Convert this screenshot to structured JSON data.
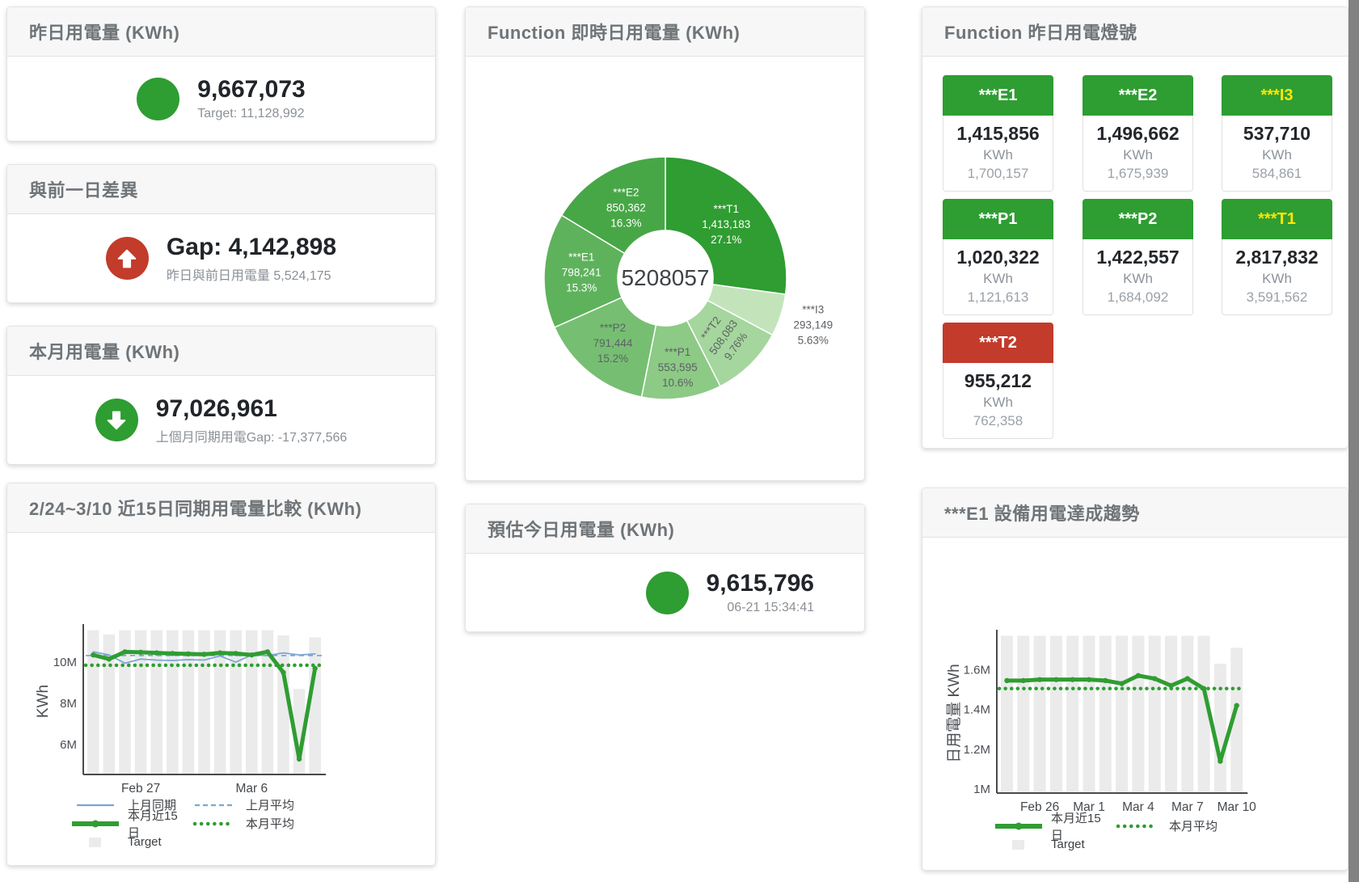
{
  "colors": {
    "green": "#2e9d32",
    "red": "#c23b2b",
    "blue": "#7aa7d4",
    "bar_grey": "#ebebeb",
    "yellow": "#ffe600"
  },
  "cards": {
    "yesterday": {
      "title": "昨日用電量 (KWh)",
      "value": "9,667,073",
      "subtitle": "Target: 11,128,992"
    },
    "day_gap": {
      "title": "與前一日差異",
      "value": "Gap: 4,142,898",
      "subtitle": "昨日與前日用電量 5,524,175"
    },
    "month": {
      "title": "本月用電量 (KWh)",
      "value": "97,026,961",
      "subtitle": "上個月同期用電Gap: -17,377,566"
    },
    "today_estimate": {
      "title": "預估今日用電量 (KWh)",
      "value": "9,615,796",
      "subtitle": "06-21 15:34:41"
    }
  },
  "lights": {
    "title": "Function 昨日用電燈號",
    "tiles": [
      {
        "label": "***E1",
        "value": "1,415,856",
        "unit": "KWh",
        "target": "1,700,157",
        "state": "green",
        "label_color": "#ffffff"
      },
      {
        "label": "***E2",
        "value": "1,496,662",
        "unit": "KWh",
        "target": "1,675,939",
        "state": "green",
        "label_color": "#ffffff"
      },
      {
        "label": "***I3",
        "value": "537,710",
        "unit": "KWh",
        "target": "584,861",
        "state": "green",
        "label_color": "#ffe600"
      },
      {
        "label": "***P1",
        "value": "1,020,322",
        "unit": "KWh",
        "target": "1,121,613",
        "state": "green",
        "label_color": "#ffffff"
      },
      {
        "label": "***P2",
        "value": "1,422,557",
        "unit": "KWh",
        "target": "1,684,092",
        "state": "green",
        "label_color": "#ffffff"
      },
      {
        "label": "***T1",
        "value": "2,817,832",
        "unit": "KWh",
        "target": "3,591,562",
        "state": "green",
        "label_color": "#ffe600"
      },
      {
        "label": "***T2",
        "value": "955,212",
        "unit": "KWh",
        "target": "762,358",
        "state": "red",
        "label_color": "#ffffff"
      }
    ]
  },
  "chart_data": [
    {
      "type": "pie",
      "title": "Function 即時日用電量 (KWh)",
      "center_total": "5208057",
      "slices": [
        {
          "name": "***T1",
          "value": 1413183,
          "pct": "27.1%",
          "color": "#2f9d32",
          "text": "#ffffff"
        },
        {
          "name": "***I3",
          "value": 293149,
          "pct": "5.63%",
          "color": "#c3e4bb",
          "text": "#5d6166"
        },
        {
          "name": "***T2",
          "value": 508083,
          "pct": "9.76%",
          "color": "#a5d69d",
          "text": "#5d6166"
        },
        {
          "name": "***P1",
          "value": 553595,
          "pct": "10.6%",
          "color": "#8cca85",
          "text": "#5d6166"
        },
        {
          "name": "***P2",
          "value": 791444,
          "pct": "15.2%",
          "color": "#76bf72",
          "text": "#5d6166"
        },
        {
          "name": "***E1",
          "value": 798241,
          "pct": "15.3%",
          "color": "#5fb25c",
          "text": "#ffffff"
        },
        {
          "name": "***E2",
          "value": 850362,
          "pct": "16.3%",
          "color": "#47a746",
          "text": "#ffffff"
        }
      ]
    },
    {
      "type": "line+bar",
      "title": "2/24~3/10 近15日同期用電量比較 (KWh)",
      "ylabel": "KWh",
      "ylim": [
        4.55,
        11.65
      ],
      "yticks": [
        {
          "label": "6M",
          "value": 6
        },
        {
          "label": "8M",
          "value": 8
        },
        {
          "label": "10M",
          "value": 10
        }
      ],
      "xticks": [
        {
          "label": "Feb 27",
          "index": 3
        },
        {
          "label": "Mar 6",
          "index": 10
        }
      ],
      "series": [
        {
          "name": "Target",
          "type": "bar",
          "color": "#ebebeb",
          "values": [
            11.55,
            11.35,
            11.55,
            11.55,
            11.55,
            11.55,
            11.55,
            11.55,
            11.55,
            11.55,
            11.55,
            11.55,
            11.3,
            8.7,
            11.2
          ]
        },
        {
          "name": "上月平均",
          "type": "dashed",
          "color": "#7aa7d4",
          "values": 10.32
        },
        {
          "name": "本月平均",
          "type": "dotted",
          "color": "#2f9d32",
          "values": 9.85
        },
        {
          "name": "上月同期",
          "type": "line",
          "color": "#7aa7d4",
          "values": [
            10.5,
            10.35,
            9.95,
            10.15,
            10.1,
            10.08,
            10.12,
            10.1,
            10.3,
            10.0,
            10.35,
            10.32,
            10.45,
            10.35,
            10.4
          ]
        },
        {
          "name": "本月近15日",
          "type": "thick",
          "color": "#2f9d32",
          "values": [
            10.35,
            10.15,
            10.5,
            10.48,
            10.45,
            10.42,
            10.4,
            10.38,
            10.45,
            10.42,
            10.35,
            10.5,
            9.5,
            5.3,
            9.7
          ]
        }
      ],
      "legend_rows": [
        [
          "上月同期",
          "上月平均"
        ],
        [
          "本月近15日",
          "本月平均"
        ],
        [
          "Target"
        ]
      ]
    },
    {
      "type": "line+bar",
      "title": "***E1 設備用電達成趨勢",
      "ylabel": "日用電量 KWh",
      "ylim": [
        0.98,
        1.78
      ],
      "yticks": [
        {
          "label": "1M",
          "value": 1.0
        },
        {
          "label": "1.2M",
          "value": 1.2
        },
        {
          "label": "1.4M",
          "value": 1.4
        },
        {
          "label": "1.6M",
          "value": 1.6
        }
      ],
      "xticks": [
        {
          "label": "Feb 26",
          "index": 2
        },
        {
          "label": "Mar 1",
          "index": 5
        },
        {
          "label": "Mar 4",
          "index": 8
        },
        {
          "label": "Mar 7",
          "index": 11
        },
        {
          "label": "Mar 10",
          "index": 14
        }
      ],
      "series": [
        {
          "name": "Target",
          "type": "bar",
          "color": "#ebebeb",
          "values": [
            1.77,
            1.77,
            1.77,
            1.77,
            1.77,
            1.77,
            1.77,
            1.77,
            1.77,
            1.77,
            1.77,
            1.77,
            1.77,
            1.63,
            1.71
          ]
        },
        {
          "name": "本月平均",
          "type": "dotted",
          "color": "#2f9d32",
          "values": 1.505
        },
        {
          "name": "本月近15日",
          "type": "thick",
          "color": "#2f9d32",
          "values": [
            1.545,
            1.545,
            1.55,
            1.55,
            1.55,
            1.55,
            1.545,
            1.53,
            1.57,
            1.555,
            1.52,
            1.555,
            1.505,
            1.14,
            1.42
          ]
        }
      ],
      "legend_rows": [
        [
          "本月近15日",
          "本月平均"
        ],
        [
          "Target"
        ]
      ]
    }
  ]
}
